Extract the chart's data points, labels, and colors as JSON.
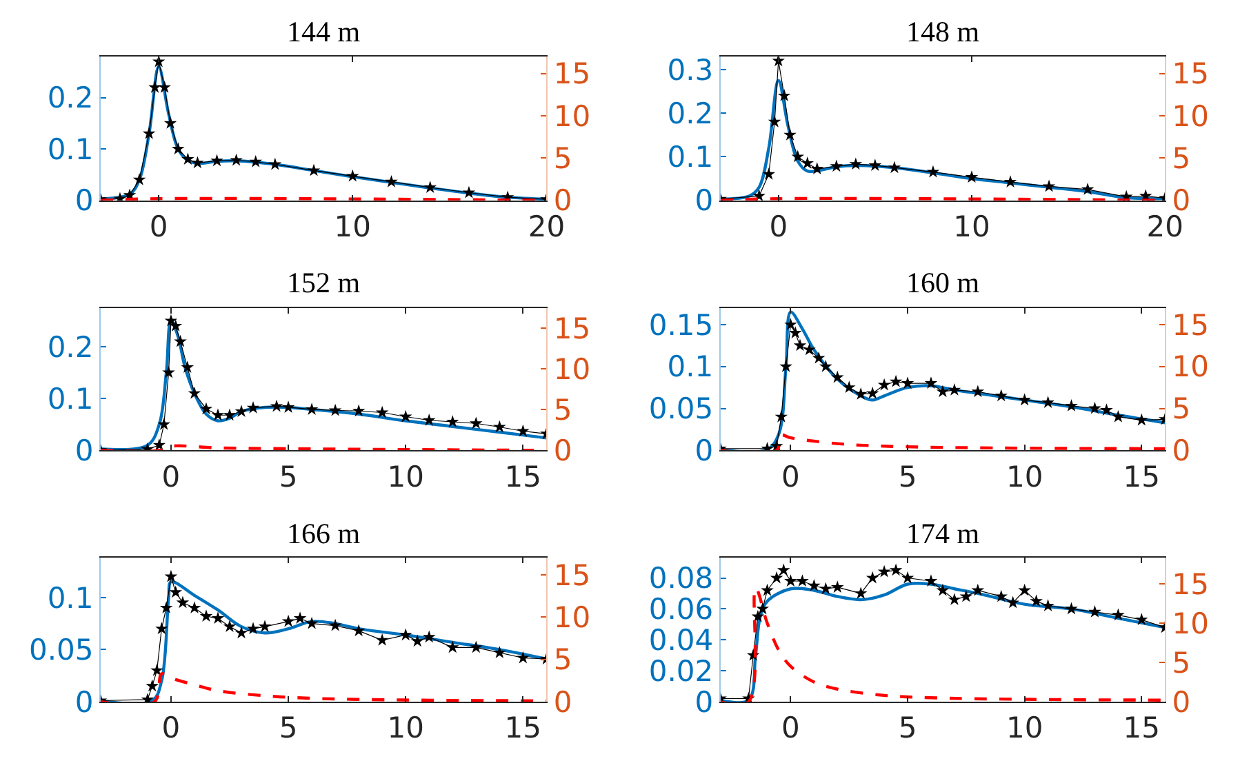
{
  "chart_data": [
    {
      "type": "line",
      "title": "144 m",
      "xlim": [
        -3,
        20
      ],
      "xticks": [
        0,
        10,
        20
      ],
      "ylim": [
        0,
        0.28
      ],
      "yticks": [
        0,
        0.1,
        0.2
      ],
      "y2lim": [
        0,
        17
      ],
      "y2ticks": [
        0,
        5,
        10,
        15
      ],
      "series": [
        {
          "color": "#000000",
          "marker": "star",
          "x": [
            -3,
            -2,
            -1.5,
            -1,
            -0.5,
            -0.2,
            0,
            0.3,
            0.6,
            1,
            1.5,
            2,
            3,
            4,
            5,
            6,
            8,
            10,
            12,
            14,
            16,
            18,
            20
          ],
          "values": [
            0.002,
            0.003,
            0.01,
            0.04,
            0.13,
            0.22,
            0.27,
            0.22,
            0.15,
            0.1,
            0.08,
            0.073,
            0.077,
            0.078,
            0.075,
            0.07,
            0.058,
            0.047,
            0.036,
            0.025,
            0.015,
            0.006,
            0.002
          ]
        },
        {
          "color": "#0072bd",
          "x": [
            -3,
            -1.5,
            -1,
            -0.5,
            0,
            0.5,
            1,
            1.5,
            2,
            3,
            4,
            6,
            8,
            10,
            12,
            14,
            16,
            18,
            20
          ],
          "values": [
            0.003,
            0.012,
            0.04,
            0.13,
            0.26,
            0.17,
            0.1,
            0.078,
            0.072,
            0.076,
            0.077,
            0.07,
            0.058,
            0.046,
            0.035,
            0.024,
            0.014,
            0.006,
            0.002
          ]
        },
        {
          "color": "#ff0000",
          "line_style": "dashed",
          "axis": "y2",
          "x": [
            -3,
            0,
            20
          ],
          "values": [
            0,
            0.2,
            0
          ]
        }
      ]
    },
    {
      "type": "line",
      "title": "148 m",
      "xlim": [
        -3,
        20
      ],
      "xticks": [
        0,
        10,
        20
      ],
      "ylim": [
        0,
        0.33
      ],
      "yticks": [
        0,
        0.1,
        0.2,
        0.3
      ],
      "y2lim": [
        0,
        17
      ],
      "y2ticks": [
        0,
        5,
        10,
        15
      ],
      "series": [
        {
          "color": "#000000",
          "marker": "star",
          "x": [
            -3,
            -1,
            -0.5,
            -0.2,
            0,
            0.3,
            0.6,
            1,
            1.5,
            2,
            3,
            4,
            5,
            6,
            8,
            10,
            12,
            14,
            16,
            18,
            19,
            20
          ],
          "values": [
            0.003,
            0.01,
            0.06,
            0.18,
            0.32,
            0.24,
            0.15,
            0.1,
            0.085,
            0.072,
            0.078,
            0.083,
            0.08,
            0.075,
            0.065,
            0.053,
            0.042,
            0.032,
            0.025,
            0.008,
            0.01,
            0.005
          ]
        },
        {
          "color": "#0072bd",
          "x": [
            -3,
            -1.5,
            -1,
            -0.5,
            0,
            0.5,
            1,
            1.5,
            2,
            3,
            4,
            6,
            8,
            10,
            12,
            14,
            16,
            18,
            20
          ],
          "values": [
            0.003,
            0.01,
            0.03,
            0.12,
            0.275,
            0.17,
            0.09,
            0.067,
            0.068,
            0.077,
            0.08,
            0.075,
            0.063,
            0.05,
            0.04,
            0.03,
            0.02,
            0.006,
            0.004
          ]
        },
        {
          "color": "#ff0000",
          "line_style": "dashed",
          "axis": "y2",
          "x": [
            -3,
            0,
            20
          ],
          "values": [
            0,
            0.2,
            0
          ]
        }
      ]
    },
    {
      "type": "line",
      "title": "152 m",
      "xlim": [
        -3,
        16
      ],
      "xticks": [
        0,
        5,
        10,
        15
      ],
      "ylim": [
        0,
        0.275
      ],
      "yticks": [
        0,
        0.1,
        0.2
      ],
      "y2lim": [
        0,
        17.5
      ],
      "y2ticks": [
        0,
        5,
        10,
        15
      ],
      "series": [
        {
          "color": "#000000",
          "marker": "star",
          "x": [
            -3,
            -1,
            -0.5,
            -0.3,
            -0.1,
            0,
            0.2,
            0.4,
            0.7,
            1,
            1.5,
            2,
            2.5,
            3,
            3.5,
            4.5,
            5,
            6,
            7,
            8,
            9,
            10,
            11,
            12,
            13,
            14,
            15,
            16
          ],
          "values": [
            0,
            0.002,
            0.01,
            0.05,
            0.15,
            0.25,
            0.24,
            0.21,
            0.16,
            0.11,
            0.08,
            0.068,
            0.068,
            0.075,
            0.082,
            0.085,
            0.083,
            0.079,
            0.077,
            0.076,
            0.073,
            0.065,
            0.058,
            0.055,
            0.052,
            0.045,
            0.037,
            0.032
          ]
        },
        {
          "color": "#0072bd",
          "x": [
            -3,
            -1,
            -0.5,
            -0.2,
            0,
            0.3,
            0.6,
            1,
            1.5,
            2,
            2.5,
            3,
            4,
            5,
            6,
            8,
            10,
            12,
            14,
            16
          ],
          "values": [
            0.003,
            0.01,
            0.05,
            0.15,
            0.25,
            0.22,
            0.16,
            0.11,
            0.07,
            0.057,
            0.062,
            0.075,
            0.083,
            0.083,
            0.079,
            0.07,
            0.057,
            0.046,
            0.035,
            0.024
          ]
        },
        {
          "color": "#ff0000",
          "line_style": "dashed",
          "axis": "y2",
          "x": [
            -3,
            -0.5,
            0,
            2,
            5,
            10,
            16
          ],
          "values": [
            0,
            0,
            0.5,
            0.3,
            0.2,
            0.1,
            0
          ]
        }
      ]
    },
    {
      "type": "line",
      "title": "160 m",
      "xlim": [
        -3,
        16
      ],
      "xticks": [
        0,
        5,
        10,
        15
      ],
      "ylim": [
        0,
        0.17
      ],
      "yticks": [
        0,
        0.05,
        0.1,
        0.15
      ],
      "y2lim": [
        0,
        17
      ],
      "y2ticks": [
        0,
        5,
        10,
        15
      ],
      "series": [
        {
          "color": "#000000",
          "marker": "star",
          "x": [
            -3,
            -1,
            -0.6,
            -0.4,
            -0.2,
            0,
            0.2,
            0.4,
            0.8,
            1.2,
            1.5,
            2,
            2.5,
            3,
            3.5,
            4,
            4.5,
            5,
            6,
            6.5,
            7,
            8,
            9,
            10,
            11,
            12,
            13,
            13.5,
            14,
            15,
            16
          ],
          "values": [
            0.002,
            0.002,
            0.005,
            0.04,
            0.1,
            0.15,
            0.14,
            0.125,
            0.12,
            0.11,
            0.1,
            0.087,
            0.075,
            0.067,
            0.068,
            0.078,
            0.082,
            0.08,
            0.08,
            0.07,
            0.072,
            0.07,
            0.065,
            0.06,
            0.057,
            0.053,
            0.05,
            0.048,
            0.04,
            0.036,
            0.037
          ]
        },
        {
          "color": "#0072bd",
          "x": [
            -3,
            -1,
            -0.5,
            -0.2,
            0,
            0.5,
            1,
            2,
            3,
            3.5,
            4,
            5,
            6,
            7,
            8,
            10,
            12,
            14,
            16
          ],
          "values": [
            0.001,
            0.001,
            0.02,
            0.1,
            0.165,
            0.145,
            0.12,
            0.085,
            0.065,
            0.06,
            0.065,
            0.075,
            0.077,
            0.072,
            0.068,
            0.06,
            0.052,
            0.042,
            0.033
          ]
        },
        {
          "color": "#ff0000",
          "line_style": "dashed",
          "axis": "y2",
          "x": [
            -3,
            -0.6,
            -0.4,
            0,
            2,
            4,
            8,
            16
          ],
          "values": [
            0,
            0,
            1.8,
            1.5,
            0.8,
            0.5,
            0.3,
            0.2
          ]
        }
      ]
    },
    {
      "type": "line",
      "title": "166 m",
      "xlim": [
        -3,
        16
      ],
      "xticks": [
        0,
        5,
        10,
        15
      ],
      "ylim": [
        0,
        0.138
      ],
      "yticks": [
        0,
        0.05,
        0.1
      ],
      "y2lim": [
        0,
        17
      ],
      "y2ticks": [
        0,
        5,
        10,
        15
      ],
      "series": [
        {
          "color": "#000000",
          "marker": "star",
          "x": [
            -3,
            -1,
            -0.8,
            -0.6,
            -0.4,
            -0.2,
            0,
            0.2,
            0.5,
            1,
            1.5,
            2,
            2.5,
            3,
            3.5,
            4,
            5,
            5.5,
            6,
            7,
            8,
            9,
            10,
            10.5,
            11,
            12,
            13,
            14,
            15,
            16
          ],
          "values": [
            0.001,
            0.002,
            0.015,
            0.03,
            0.07,
            0.09,
            0.12,
            0.105,
            0.095,
            0.09,
            0.082,
            0.08,
            0.072,
            0.066,
            0.07,
            0.072,
            0.077,
            0.08,
            0.075,
            0.073,
            0.068,
            0.059,
            0.064,
            0.058,
            0.062,
            0.052,
            0.052,
            0.047,
            0.042,
            0.041
          ]
        },
        {
          "color": "#0072bd",
          "x": [
            -3,
            -0.8,
            -0.4,
            -0.1,
            0,
            1,
            2,
            3,
            4,
            5,
            6,
            7,
            8,
            10,
            12,
            14,
            16
          ],
          "values": [
            0.001,
            0.001,
            0.02,
            0.1,
            0.115,
            0.102,
            0.088,
            0.072,
            0.066,
            0.07,
            0.077,
            0.075,
            0.07,
            0.064,
            0.057,
            0.05,
            0.041
          ]
        },
        {
          "color": "#ff0000",
          "line_style": "dashed",
          "axis": "y2",
          "x": [
            -3,
            -0.7,
            -0.4,
            0,
            1,
            2,
            4,
            6,
            10,
            16
          ],
          "values": [
            0,
            0,
            3.3,
            2.8,
            2,
            1.3,
            0.7,
            0.4,
            0.2,
            0.1
          ]
        }
      ]
    },
    {
      "type": "line",
      "title": "174 m",
      "xlim": [
        -3,
        16
      ],
      "xticks": [
        0,
        5,
        10,
        15
      ],
      "ylim": [
        0,
        0.093
      ],
      "yticks": [
        0,
        0.02,
        0.04,
        0.06,
        0.08
      ],
      "y2lim": [
        0,
        18.3
      ],
      "y2ticks": [
        0,
        5,
        10,
        15
      ],
      "series": [
        {
          "color": "#000000",
          "marker": "star",
          "x": [
            -3,
            -1.8,
            -1.6,
            -1.4,
            -1.2,
            -1,
            -0.6,
            -0.3,
            0,
            0.5,
            1,
            1.5,
            2,
            3,
            3.5,
            4,
            4.5,
            5,
            6,
            6.5,
            7,
            7.5,
            8,
            9,
            9.5,
            10,
            10.5,
            11,
            12,
            13,
            14,
            15,
            16
          ],
          "values": [
            0.002,
            0.002,
            0.03,
            0.055,
            0.06,
            0.072,
            0.08,
            0.085,
            0.078,
            0.078,
            0.075,
            0.073,
            0.074,
            0.07,
            0.08,
            0.084,
            0.085,
            0.08,
            0.078,
            0.072,
            0.066,
            0.068,
            0.072,
            0.068,
            0.064,
            0.072,
            0.065,
            0.062,
            0.06,
            0.058,
            0.056,
            0.053,
            0.048
          ]
        },
        {
          "color": "#0072bd",
          "x": [
            -3,
            -1.8,
            -1.5,
            -1.3,
            -1,
            0,
            1,
            2,
            3,
            4,
            5,
            6,
            7,
            8,
            10,
            12,
            14,
            16
          ],
          "values": [
            0.001,
            0.001,
            0.03,
            0.055,
            0.065,
            0.073,
            0.072,
            0.068,
            0.066,
            0.069,
            0.076,
            0.076,
            0.073,
            0.07,
            0.063,
            0.06,
            0.054,
            0.048
          ]
        },
        {
          "color": "#ff0000",
          "line_style": "dashed",
          "axis": "y2",
          "x": [
            -3,
            -1.8,
            -1.5,
            -1,
            -0.5,
            0,
            1,
            2,
            4,
            6,
            10,
            16
          ],
          "values": [
            0,
            0,
            14.5,
            10,
            6.5,
            4.5,
            2.5,
            1.6,
            0.8,
            0.5,
            0.3,
            0.2
          ]
        }
      ]
    }
  ]
}
